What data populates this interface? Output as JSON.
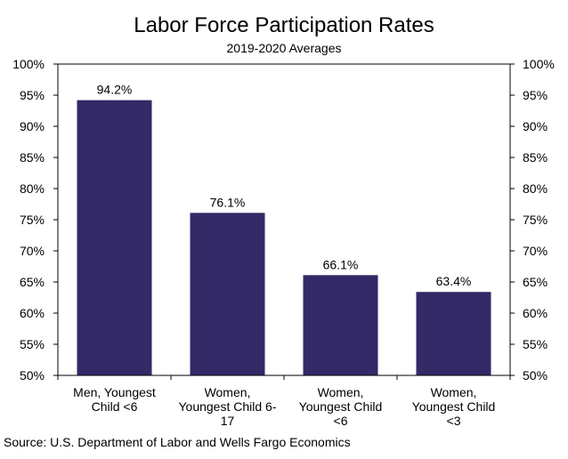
{
  "chart_data": {
    "type": "bar",
    "title": "Labor Force Participation Rates",
    "subtitle": "2019-2020 Averages",
    "categories": [
      [
        "Men, Youngest",
        "Child <6"
      ],
      [
        "Women,",
        "Youngest Child 6-",
        "17"
      ],
      [
        "Women,",
        "Youngest Child",
        "<6"
      ],
      [
        "Women,",
        "Youngest Child",
        "<3"
      ]
    ],
    "values": [
      94.2,
      76.1,
      66.1,
      63.4
    ],
    "data_labels": [
      "94.2%",
      "76.1%",
      "66.1%",
      "63.4%"
    ],
    "ylim": [
      50,
      100
    ],
    "yticks": [
      50,
      55,
      60,
      65,
      70,
      75,
      80,
      85,
      90,
      95,
      100
    ],
    "ytick_labels": [
      "50%",
      "55%",
      "60%",
      "65%",
      "70%",
      "75%",
      "80%",
      "85%",
      "90%",
      "95%",
      "100%"
    ],
    "secondary_axis": true,
    "grid": false,
    "xlabel": "",
    "ylabel": "",
    "bar_color": "#332966",
    "source": "Source: U.S. Department of Labor and Wells Fargo Economics"
  }
}
